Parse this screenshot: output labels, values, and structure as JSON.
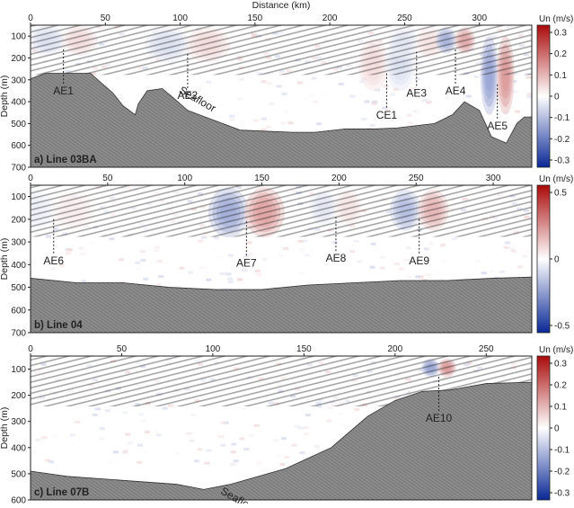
{
  "figure": {
    "top_xlabel": "Distance (km)",
    "ylabel": "Depth (m)",
    "colorbar_label": "Un (m/s)"
  },
  "colors": {
    "seafloor": "#8c8c8c",
    "negative": "#1f3fa8",
    "positive": "#c11a1a",
    "neutral": "#ffffff"
  },
  "chart_data": [
    {
      "type": "heatmap",
      "panel_label": "a) Line 03BA",
      "xlabel": "Distance (km)",
      "ylabel": "Depth (m)",
      "xlim": [
        0,
        335
      ],
      "ylim": [
        700,
        50
      ],
      "xticks": [
        0,
        50,
        100,
        150,
        200,
        250,
        300
      ],
      "yticks": [
        100,
        200,
        300,
        400,
        500,
        600,
        700
      ],
      "colorbar": {
        "label": "Un (m/s)",
        "range": [
          -0.3,
          0.35
        ],
        "ticks": [
          "0.3",
          "0.2",
          "0.1",
          "0",
          "-0.1",
          "-0.2",
          "-0.3"
        ]
      },
      "seafloor_label": "Seafloor",
      "seafloor_profile": [
        [
          0,
          295
        ],
        [
          10,
          270
        ],
        [
          40,
          270
        ],
        [
          55,
          360
        ],
        [
          62,
          420
        ],
        [
          70,
          460
        ],
        [
          72,
          410
        ],
        [
          78,
          350
        ],
        [
          88,
          340
        ],
        [
          95,
          380
        ],
        [
          105,
          440
        ],
        [
          140,
          530
        ],
        [
          175,
          540
        ],
        [
          190,
          540
        ],
        [
          210,
          525
        ],
        [
          230,
          525
        ],
        [
          245,
          520
        ],
        [
          270,
          500
        ],
        [
          282,
          460
        ],
        [
          290,
          400
        ],
        [
          300,
          440
        ],
        [
          308,
          560
        ],
        [
          318,
          590
        ],
        [
          325,
          500
        ],
        [
          330,
          470
        ],
        [
          335,
          470
        ]
      ],
      "features": [
        {
          "name": "AE1",
          "x": 22,
          "depth": 120,
          "sign": 1,
          "amp": 0.12,
          "sx": 12,
          "sy": 70
        },
        {
          "name": "AE2",
          "x": 105,
          "depth": 140,
          "sign": 1,
          "amp": 0.12,
          "sx": 15,
          "sy": 80
        },
        {
          "name": "CE1",
          "x": 238,
          "depth": 230,
          "sign": -1,
          "amp": 0.12,
          "sx": 10,
          "sy": 120
        },
        {
          "name": "AE3",
          "x": 258,
          "depth": 130,
          "sign": 1,
          "amp": 0.1,
          "sx": 10,
          "sy": 70
        },
        {
          "name": "AE4",
          "x": 284,
          "depth": 120,
          "sign": 1,
          "amp": 0.3,
          "sx": 7,
          "sy": 60
        },
        {
          "name": "AE5",
          "x": 312,
          "depth": 280,
          "sign": 1,
          "amp": 0.35,
          "sx": 6,
          "sy": 180
        }
      ]
    },
    {
      "type": "heatmap",
      "panel_label": "b) Line 04",
      "xlabel": "",
      "ylabel": "Depth (m)",
      "xlim": [
        0,
        325
      ],
      "ylim": [
        700,
        50
      ],
      "xticks": [
        0,
        50,
        100,
        150,
        200,
        250,
        300
      ],
      "yticks": [
        100,
        200,
        300,
        400,
        500,
        600,
        700
      ],
      "colorbar": {
        "label": "Un (m/s)",
        "range": [
          -0.5,
          0.55
        ],
        "ticks": [
          "0.5",
          "0",
          "-0.5"
        ]
      },
      "seafloor_label": "",
      "seafloor_profile": [
        [
          0,
          460
        ],
        [
          30,
          480
        ],
        [
          60,
          480
        ],
        [
          90,
          500
        ],
        [
          120,
          510
        ],
        [
          150,
          510
        ],
        [
          180,
          490
        ],
        [
          210,
          480
        ],
        [
          240,
          470
        ],
        [
          270,
          470
        ],
        [
          300,
          460
        ],
        [
          325,
          455
        ]
      ],
      "features": [
        {
          "name": "AE6",
          "x": 15,
          "depth": 160,
          "sign": 1,
          "amp": 0.1,
          "sx": 14,
          "sy": 90
        },
        {
          "name": "AE7",
          "x": 140,
          "depth": 170,
          "sign": 1,
          "amp": 0.5,
          "sx": 13,
          "sy": 110
        },
        {
          "name": "AE8",
          "x": 198,
          "depth": 150,
          "sign": 1,
          "amp": 0.15,
          "sx": 9,
          "sy": 80
        },
        {
          "name": "AE9",
          "x": 252,
          "depth": 160,
          "sign": 1,
          "amp": 0.4,
          "sx": 10,
          "sy": 90
        }
      ]
    },
    {
      "type": "heatmap",
      "panel_label": "c) Line 07B",
      "xlabel": "",
      "ylabel": "Depth (m)",
      "xlim": [
        0,
        275
      ],
      "ylim": [
        600,
        50
      ],
      "xticks": [
        0,
        50,
        100,
        150,
        200,
        250
      ],
      "yticks": [
        100,
        200,
        300,
        400,
        500,
        600
      ],
      "colorbar": {
        "label": "Un (m/s)",
        "range": [
          -0.3,
          0.3
        ],
        "ticks": [
          "0.3",
          "0.2",
          "0.1",
          "0",
          "-0.1",
          "-0.2",
          "-0.3"
        ]
      },
      "seafloor_label": "Seafloor",
      "seafloor_profile": [
        [
          0,
          490
        ],
        [
          20,
          510
        ],
        [
          50,
          525
        ],
        [
          80,
          540
        ],
        [
          95,
          560
        ],
        [
          110,
          540
        ],
        [
          140,
          480
        ],
        [
          165,
          400
        ],
        [
          185,
          280
        ],
        [
          200,
          220
        ],
        [
          215,
          185
        ],
        [
          230,
          180
        ],
        [
          250,
          155
        ],
        [
          275,
          150
        ]
      ],
      "features": [
        {
          "name": "AE10",
          "x": 224,
          "depth": 95,
          "sign": 1,
          "amp": 0.3,
          "sx": 5,
          "sy": 35
        }
      ]
    }
  ]
}
